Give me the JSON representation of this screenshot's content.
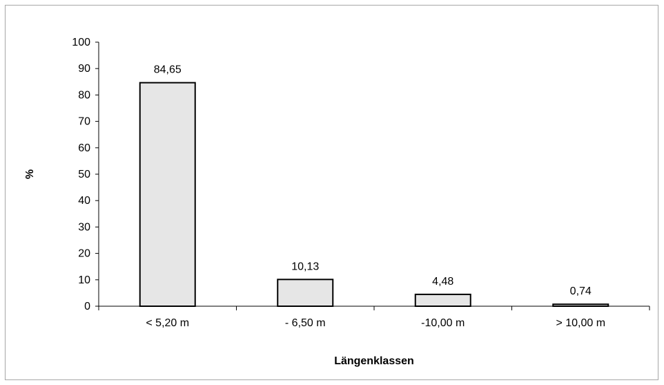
{
  "chart_data": {
    "type": "bar",
    "title": "",
    "xlabel": "Längenklassen",
    "ylabel": "%",
    "ylim": [
      0,
      100
    ],
    "yticks": [
      0,
      10,
      20,
      30,
      40,
      50,
      60,
      70,
      80,
      90,
      100
    ],
    "categories": [
      "< 5,20 m",
      "- 6,50 m",
      "-10,00 m",
      "> 10,00 m"
    ],
    "values": [
      84.65,
      10.13,
      4.48,
      0.74
    ],
    "value_labels": [
      "84,65",
      "10,13",
      "4,48",
      "0,74"
    ],
    "grid": false,
    "legend": "none",
    "colors": {
      "bar_fill": "#e6e6e6",
      "bar_stroke": "#000000",
      "axis": "#000000",
      "frame": "#a6a6a6"
    }
  }
}
